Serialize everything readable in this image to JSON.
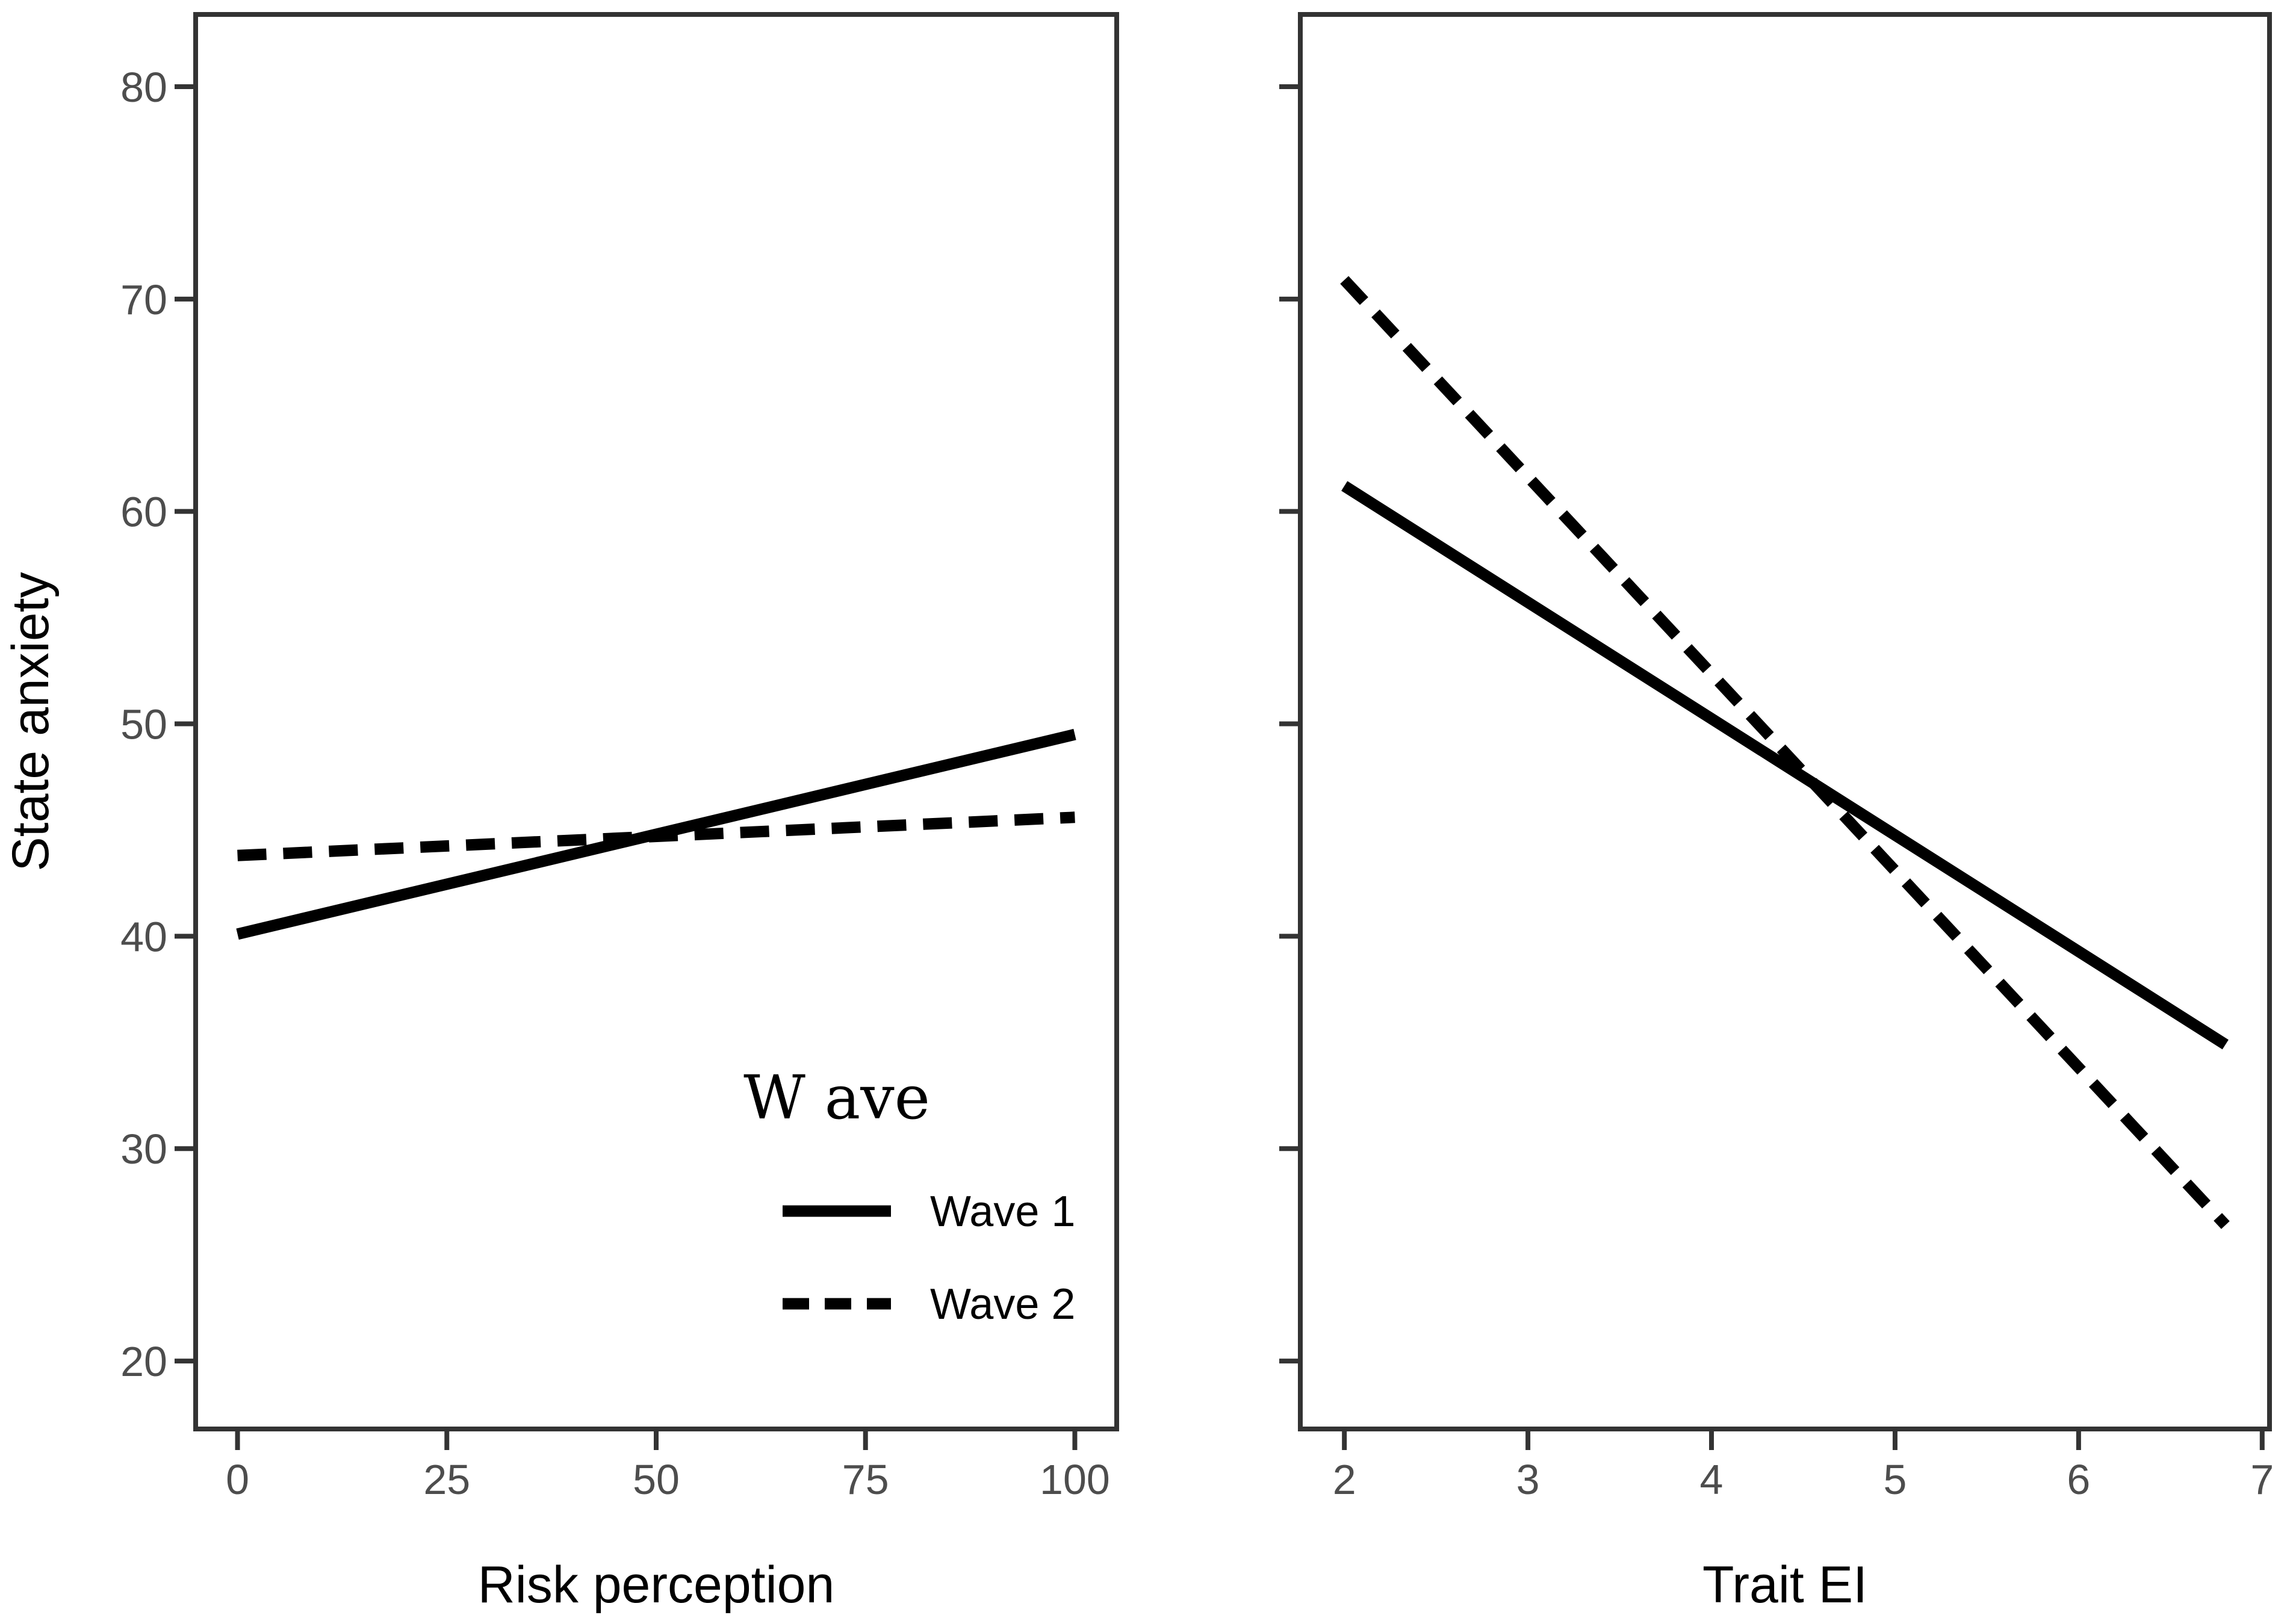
{
  "figure": {
    "ylabel": "State anxiety",
    "background_color": "#ffffff",
    "panel_border_color": "#333333",
    "tick_color": "#333333",
    "tick_label_color": "#4d4d4d",
    "series_line_color": "#000000"
  },
  "legend": {
    "title": "W ave",
    "entries": [
      {
        "label": "Wave 1",
        "linetype": "solid"
      },
      {
        "label": "Wave 2",
        "linetype": "dashed"
      }
    ]
  },
  "chart_data": [
    {
      "type": "line",
      "panel": "left",
      "title": "",
      "xlabel": "Risk perception",
      "ylabel": "State anxiety",
      "xlim": [
        -5,
        105
      ],
      "ylim": [
        16.8,
        83.4
      ],
      "xticks": [
        0,
        25,
        50,
        75,
        100
      ],
      "yticks": [
        20,
        30,
        40,
        50,
        60,
        70,
        80
      ],
      "show_ytick_labels": true,
      "grid": false,
      "legend_position": "inside-lower-right",
      "series": [
        {
          "name": "Wave 1",
          "linetype": "solid",
          "points": [
            [
              0,
              40.1
            ],
            [
              100,
              49.5
            ]
          ]
        },
        {
          "name": "Wave 2",
          "linetype": "dashed",
          "points": [
            [
              0,
              43.8
            ],
            [
              100,
              45.6
            ]
          ]
        }
      ]
    },
    {
      "type": "line",
      "panel": "right",
      "title": "",
      "xlabel": "Trait EI",
      "ylabel": "State anxiety",
      "xlim": [
        1.76,
        7.04
      ],
      "ylim": [
        16.8,
        83.4
      ],
      "xticks": [
        2,
        3,
        4,
        5,
        6,
        7
      ],
      "yticks": [
        20,
        30,
        40,
        50,
        60,
        70,
        80
      ],
      "show_ytick_labels": false,
      "grid": false,
      "legend_position": "none",
      "series": [
        {
          "name": "Wave 1",
          "linetype": "solid",
          "points": [
            [
              2,
              61.2
            ],
            [
              6.8,
              34.9
            ]
          ]
        },
        {
          "name": "Wave 2",
          "linetype": "dashed",
          "points": [
            [
              2,
              70.9
            ],
            [
              6.8,
              26.4
            ]
          ]
        }
      ]
    }
  ]
}
